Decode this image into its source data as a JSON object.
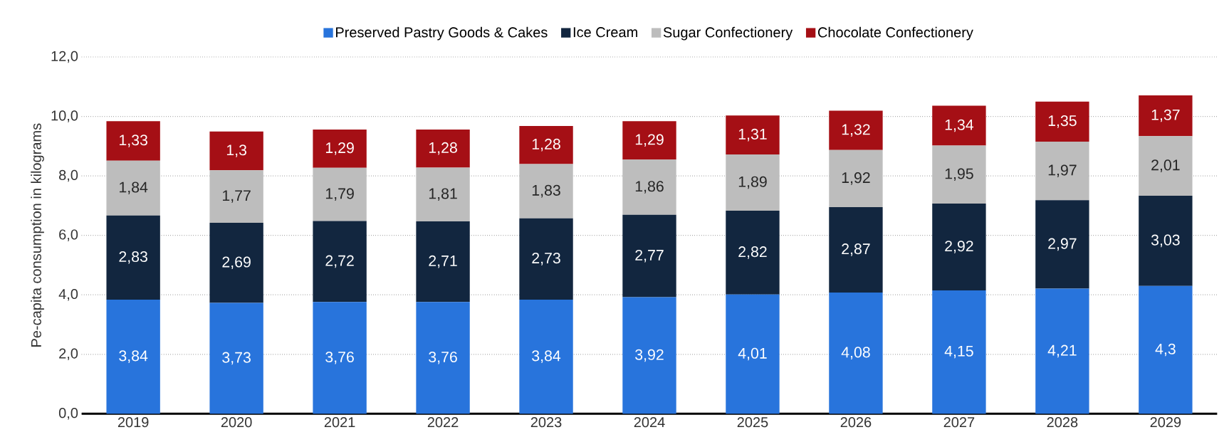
{
  "chart_data": {
    "type": "bar",
    "stacked": true,
    "ylabel": "Pe-capita consumption in kilograms",
    "categories": [
      "2019",
      "2020",
      "2021",
      "2022",
      "2023",
      "2024",
      "2025",
      "2026",
      "2027",
      "2028",
      "2029"
    ],
    "series": [
      {
        "name": "Preserved Pastry Goods & Cakes",
        "color": "#2874dc",
        "values": [
          3.84,
          3.73,
          3.76,
          3.76,
          3.84,
          3.92,
          4.01,
          4.08,
          4.15,
          4.21,
          4.3
        ],
        "value_labels": [
          "3,84",
          "3,73",
          "3,76",
          "3,76",
          "3,84",
          "3,92",
          "4,01",
          "4,08",
          "4,15",
          "4,21",
          "4,3"
        ]
      },
      {
        "name": "Ice Cream",
        "color": "#12263f",
        "values": [
          2.83,
          2.69,
          2.72,
          2.71,
          2.73,
          2.77,
          2.82,
          2.87,
          2.92,
          2.97,
          3.03
        ],
        "value_labels": [
          "2,83",
          "2,69",
          "2,72",
          "2,71",
          "2,73",
          "2,77",
          "2,82",
          "2,87",
          "2,92",
          "2,97",
          "3,03"
        ]
      },
      {
        "name": "Sugar Confectionery",
        "color": "#bdbdbd",
        "values": [
          1.84,
          1.77,
          1.79,
          1.81,
          1.83,
          1.86,
          1.89,
          1.92,
          1.95,
          1.97,
          2.01
        ],
        "value_labels": [
          "1,84",
          "1,77",
          "1,79",
          "1,81",
          "1,83",
          "1,86",
          "1,89",
          "1,92",
          "1,95",
          "1,97",
          "2,01"
        ]
      },
      {
        "name": "Chocolate Confectionery",
        "color": "#a50f15",
        "values": [
          1.33,
          1.3,
          1.29,
          1.28,
          1.28,
          1.29,
          1.31,
          1.32,
          1.34,
          1.35,
          1.37
        ],
        "value_labels": [
          "1,33",
          "1,3",
          "1,29",
          "1,28",
          "1,28",
          "1,29",
          "1,31",
          "1,32",
          "1,34",
          "1,35",
          "1,37"
        ]
      }
    ],
    "ylim": [
      0,
      12
    ],
    "yticks": [
      {
        "value": 0,
        "label": "0,0"
      },
      {
        "value": 2,
        "label": "2,0"
      },
      {
        "value": 4,
        "label": "4,0"
      },
      {
        "value": 6,
        "label": "6,0"
      },
      {
        "value": 8,
        "label": "8,0"
      },
      {
        "value": 10,
        "label": "10,0"
      },
      {
        "value": 12,
        "label": "12,0"
      }
    ],
    "grid": "y",
    "legend": "top"
  }
}
